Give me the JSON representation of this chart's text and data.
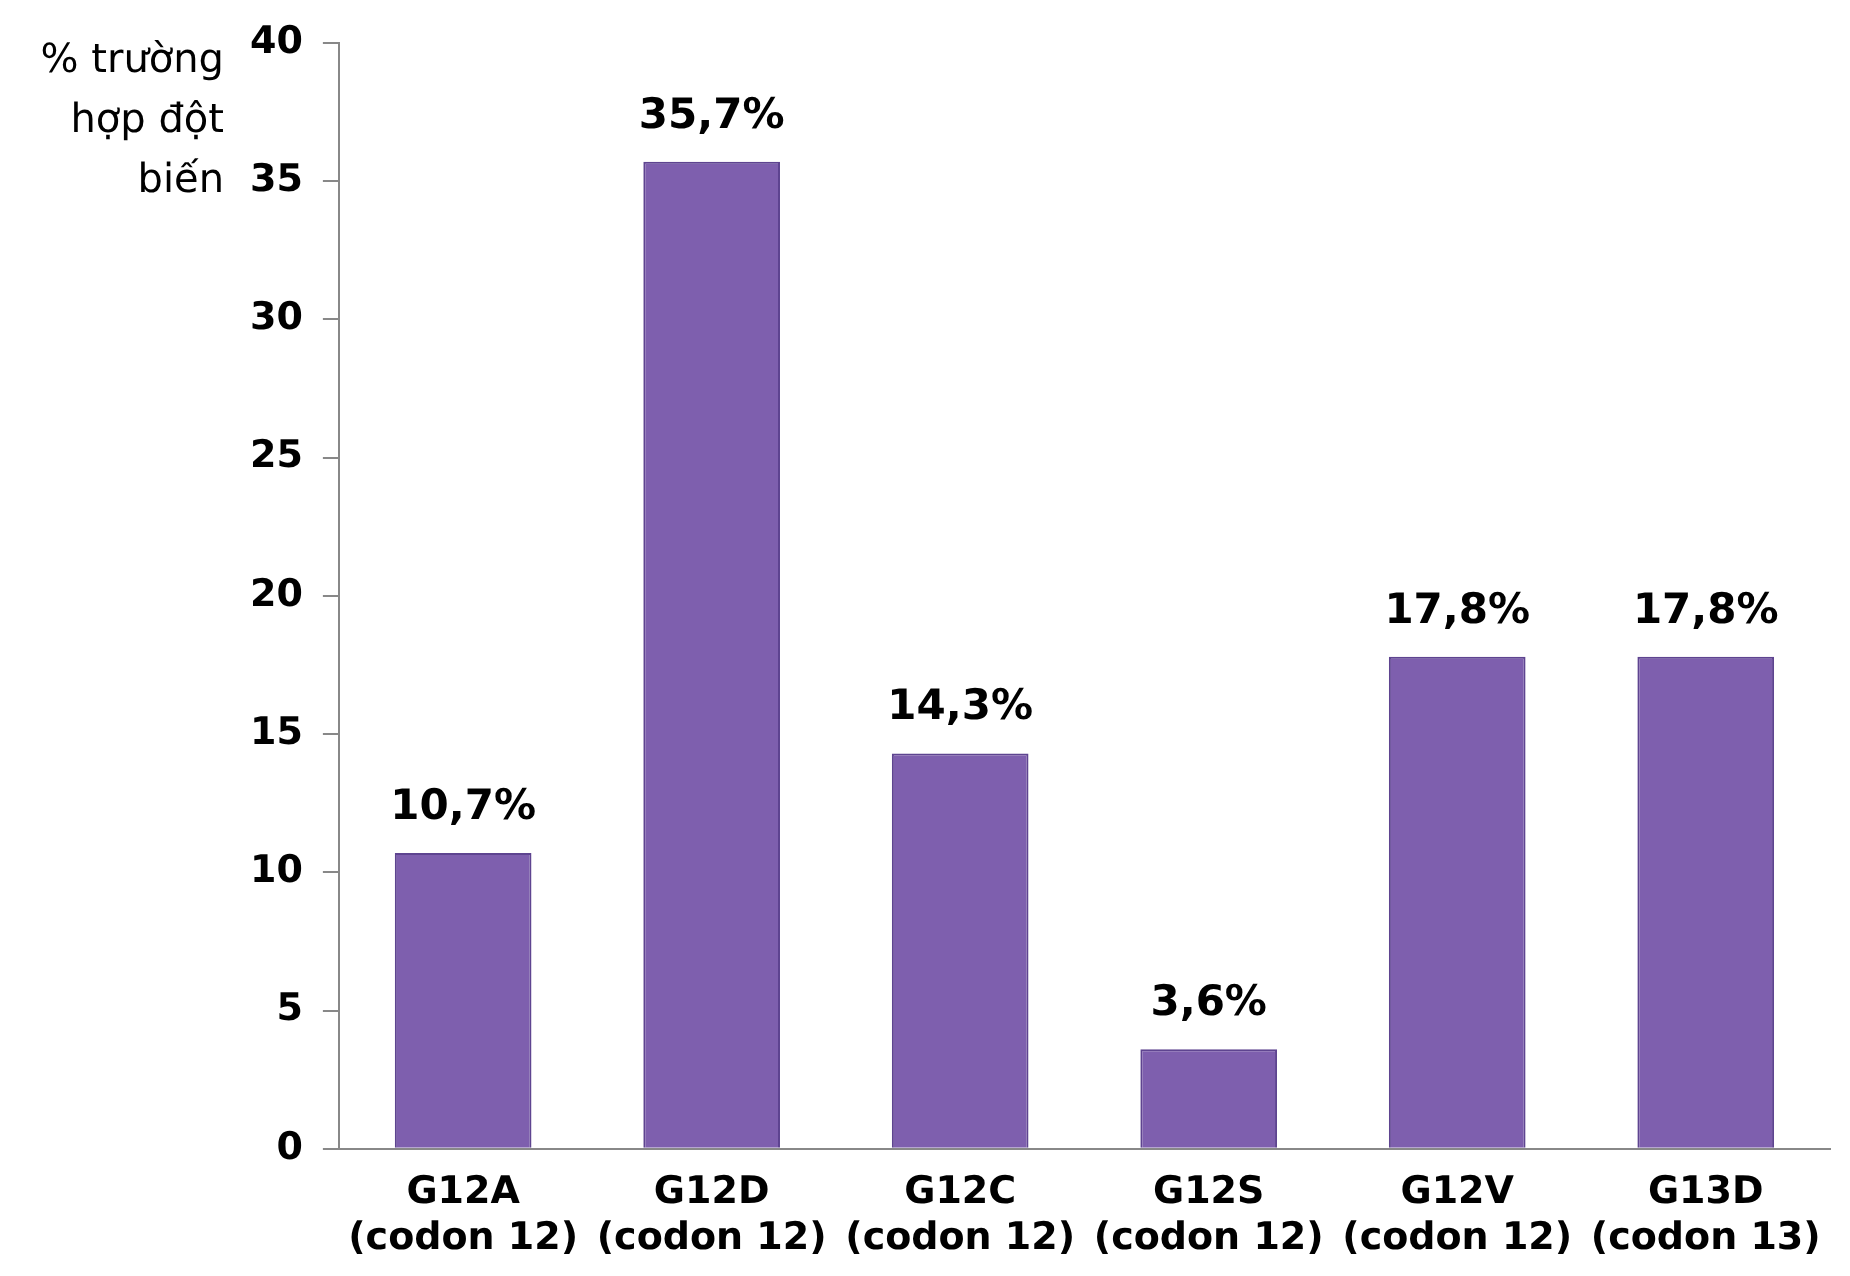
{
  "chart_data": {
    "type": "bar",
    "ylabel": "% trường hợp đột biến",
    "categories": [
      "G12A\n(codon 12)",
      "G12D\n(codon 12)",
      "G12C\n(codon 12)",
      "G12S\n(codon 12)",
      "G12V\n(codon 12)",
      "G13D\n(codon 13)"
    ],
    "values": [
      10.7,
      35.7,
      14.3,
      3.6,
      17.8,
      17.8
    ],
    "value_labels": [
      "10,7%",
      "35,7%",
      "14,3%",
      "3,6%",
      "17,8%",
      "17,8%"
    ],
    "color": "#7e5fae",
    "ylim": [
      0,
      40
    ],
    "yticks": [
      0,
      5,
      10,
      15,
      20,
      25,
      30,
      35,
      40
    ],
    "grid": false,
    "legend": false
  }
}
